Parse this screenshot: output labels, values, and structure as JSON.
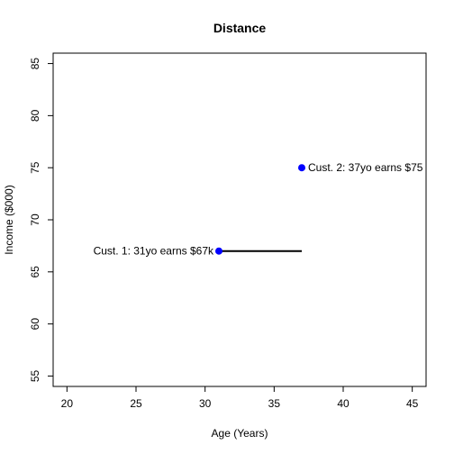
{
  "chart_data": {
    "type": "scatter",
    "title": "Distance",
    "xlabel": "Age (Years)",
    "ylabel": "Income ($000)",
    "xlim": [
      19,
      46
    ],
    "ylim": [
      54,
      86
    ],
    "x_ticks": [
      20,
      25,
      30,
      35,
      40,
      45
    ],
    "y_ticks": [
      55,
      60,
      65,
      70,
      75,
      80,
      85
    ],
    "grid": false,
    "points": [
      {
        "x": 31,
        "y": 67,
        "label": "Cust. 1: 31yo earns $67k",
        "label_side": "left",
        "color": "#0000ff"
      },
      {
        "x": 37,
        "y": 75,
        "label": "Cust. 2: 37yo earns $75",
        "label_side": "right",
        "color": "#0000ff"
      }
    ],
    "segments": [
      {
        "x1": 31,
        "y1": 67,
        "x2": 37,
        "y2": 67,
        "color": "#000000"
      }
    ]
  }
}
